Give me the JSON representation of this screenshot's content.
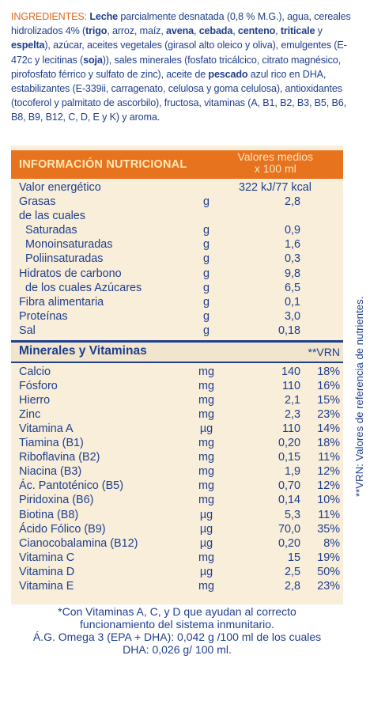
{
  "ingredients": {
    "label": "INGREDIENTES:",
    "parts": [
      {
        "t": " ",
        "b": false
      },
      {
        "t": "Leche",
        "b": true
      },
      {
        "t": " parcialmente desnatada (0,8 % M.G.), agua, cereales hidrolizados 4% (",
        "b": false
      },
      {
        "t": "trigo",
        "b": true
      },
      {
        "t": ", arroz, maíz, ",
        "b": false
      },
      {
        "t": "avena",
        "b": true
      },
      {
        "t": ", ",
        "b": false
      },
      {
        "t": "cebada",
        "b": true
      },
      {
        "t": ", ",
        "b": false
      },
      {
        "t": "centeno",
        "b": true
      },
      {
        "t": ", ",
        "b": false
      },
      {
        "t": "triticale",
        "b": true
      },
      {
        "t": " y ",
        "b": false
      },
      {
        "t": "espelta",
        "b": true
      },
      {
        "t": "), azúcar, aceites vegetales (girasol alto oleico y oliva), emulgentes (E-472c y lecitinas (",
        "b": false
      },
      {
        "t": "soja",
        "b": true
      },
      {
        "t": ")), sales minerales (fosfato tricálcico, citrato magnésico, pirofosfato férrico y sulfato de zinc), aceite de ",
        "b": false
      },
      {
        "t": "pescado",
        "b": true
      },
      {
        "t": " azul rico en DHA, estabilizantes (E-339ii, carragenato, celulosa y goma celulosa), antioxidantes (tocoferol y palmitato de ascorbilo), fructosa, vitaminas (A, B1, B2, B3, B5, B6, B8, B9, B12, C, D, E y K) y aroma.",
        "b": false
      }
    ]
  },
  "nutrition": {
    "title": "INFORMACIÓN NUTRICIONAL",
    "avg_line1": "Valores medios",
    "avg_line2": "x 100 ml",
    "energy": {
      "name": "Valor energético",
      "value": "322 kJ/77 kcal"
    },
    "rows": [
      {
        "name": "Grasas",
        "unit": "g",
        "value": "2,8"
      },
      {
        "name": "de las cuales",
        "unit": "",
        "value": ""
      },
      {
        "name": "  Saturadas",
        "unit": "g",
        "value": "0,9"
      },
      {
        "name": "  Monoinsaturadas",
        "unit": "g",
        "value": "1,6"
      },
      {
        "name": "  Poliinsaturadas",
        "unit": "g",
        "value": "0,3"
      },
      {
        "name": "Hidratos de carbono",
        "unit": "g",
        "value": "9,8"
      },
      {
        "name": "  de los cuales Azúcares",
        "unit": "g",
        "value": "6,5"
      },
      {
        "name": "Fibra alimentaria",
        "unit": "g",
        "value": "0,1"
      },
      {
        "name": "Proteínas",
        "unit": "g",
        "value": "3,0"
      },
      {
        "name": "Sal",
        "unit": "g",
        "value": "0,18"
      }
    ]
  },
  "minerals": {
    "title": "Minerales y Vitaminas",
    "vrn_header": "**VRN",
    "rows": [
      {
        "name": "Calcio",
        "unit": "mg",
        "value": "140",
        "pct": "18%"
      },
      {
        "name": "Fósforo",
        "unit": "mg",
        "value": "110",
        "pct": "16%"
      },
      {
        "name": "Hierro",
        "unit": "mg",
        "value": "2,1",
        "pct": "15%"
      },
      {
        "name": "Zinc",
        "unit": "mg",
        "value": "2,3",
        "pct": "23%"
      },
      {
        "name": "Vitamina A",
        "unit": "µg",
        "value": "110",
        "pct": "14%"
      },
      {
        "name": "Tiamina (B1)",
        "unit": "mg",
        "value": "0,20",
        "pct": "18%"
      },
      {
        "name": "Riboflavina (B2)",
        "unit": "mg",
        "value": "0,15",
        "pct": "11%"
      },
      {
        "name": "Niacina (B3)",
        "unit": "mg",
        "value": "1,9",
        "pct": "12%"
      },
      {
        "name": "Ác. Pantoténico (B5)",
        "unit": "mg",
        "value": "0,70",
        "pct": "12%"
      },
      {
        "name": "Piridoxina (B6)",
        "unit": "mg",
        "value": "0,14",
        "pct": "10%"
      },
      {
        "name": "Biotina (B8)",
        "unit": "µg",
        "value": "5,3",
        "pct": "11%"
      },
      {
        "name": "Ácido Fólico (B9)",
        "unit": "µg",
        "value": "70,0",
        "pct": "35%"
      },
      {
        "name": "Cianocobalamina (B12)",
        "unit": "µg",
        "value": "0,20",
        "pct": "8%"
      },
      {
        "name": "Vitamina C",
        "unit": "mg",
        "value": "15",
        "pct": "19%"
      },
      {
        "name": "Vitamina D",
        "unit": "µg",
        "value": "2,5",
        "pct": "50%"
      },
      {
        "name": "Vitamina E",
        "unit": "mg",
        "value": "2,8",
        "pct": "23%"
      }
    ]
  },
  "side_note": "**VRN: Valores de referencia de nutrientes.",
  "footnotes": {
    "line1": "*Con Vitaminas A, C, y D que ayudan al correcto",
    "line2": "funcionamiento del sistema inmunitario.",
    "line3": "Á.G. Omega 3 (EPA + DHA): 0,042 g /100 ml de los cuales",
    "line4": "DHA: 0,026 g/ 100 ml."
  },
  "colors": {
    "text_blue": "#1f3f8c",
    "accent_orange": "#e8731f",
    "panel_cream": "#f8eeda"
  }
}
